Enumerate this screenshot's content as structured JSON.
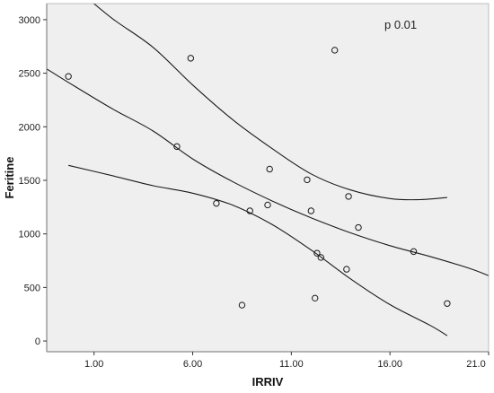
{
  "chart_data": {
    "type": "scatter",
    "xlabel": "IRRIV",
    "ylabel": "Feritine",
    "annotation": "p 0.01",
    "xlim": [
      -1.4,
      21.0
    ],
    "ylim": [
      -100,
      3150
    ],
    "x_ticks": [
      1.0,
      6.0,
      11.0,
      16.0,
      21.0
    ],
    "x_tick_labels": [
      "1.00",
      "6.00",
      "11.00",
      "16.00",
      "21.0"
    ],
    "y_ticks": [
      0,
      500,
      1000,
      1500,
      2000,
      2500,
      3000
    ],
    "y_tick_labels": [
      "0",
      "500",
      "1000",
      "1500",
      "2000",
      "2500",
      "3000"
    ],
    "points": [
      {
        "x": -0.3,
        "y": 2470
      },
      {
        "x": 5.2,
        "y": 1815
      },
      {
        "x": 5.9,
        "y": 2640
      },
      {
        "x": 7.2,
        "y": 1285
      },
      {
        "x": 8.5,
        "y": 335
      },
      {
        "x": 8.9,
        "y": 1215
      },
      {
        "x": 9.8,
        "y": 1270
      },
      {
        "x": 9.9,
        "y": 1605
      },
      {
        "x": 11.8,
        "y": 1505
      },
      {
        "x": 12.0,
        "y": 1215
      },
      {
        "x": 12.2,
        "y": 400
      },
      {
        "x": 12.3,
        "y": 820
      },
      {
        "x": 12.5,
        "y": 780
      },
      {
        "x": 13.2,
        "y": 2715
      },
      {
        "x": 13.8,
        "y": 670
      },
      {
        "x": 13.9,
        "y": 1350
      },
      {
        "x": 14.4,
        "y": 1060
      },
      {
        "x": 17.2,
        "y": 835
      },
      {
        "x": 18.9,
        "y": 350
      }
    ],
    "fit_curves": [
      {
        "x": [
          -1.4,
          0.0,
          2.0,
          4.0,
          6.0,
          8.0,
          10.0,
          12.0,
          14.0,
          16.0,
          18.0,
          20.0,
          21.0
        ],
        "y": [
          2540,
          2380,
          2160,
          1960,
          1700,
          1490,
          1310,
          1150,
          1010,
          890,
          790,
          680,
          610
        ]
      },
      {
        "x": [
          -0.3,
          2.0,
          4.0,
          6.0,
          8.0,
          10.0,
          12.0,
          14.0,
          16.0,
          18.0,
          18.9
        ],
        "y": [
          1640,
          1540,
          1450,
          1380,
          1270,
          1090,
          850,
          580,
          340,
          150,
          50
        ]
      },
      {
        "x": [
          0.8,
          2.0,
          4.0,
          6.0,
          8.0,
          10.0,
          12.0,
          14.0,
          16.0,
          17.5,
          18.9
        ],
        "y": [
          3180,
          3000,
          2740,
          2390,
          2070,
          1800,
          1560,
          1410,
          1330,
          1320,
          1340
        ]
      }
    ],
    "grid": false,
    "colors": {
      "plot_bg": "#efefef",
      "line": "#1a1a1a",
      "marker": "#1a1a1a"
    }
  }
}
